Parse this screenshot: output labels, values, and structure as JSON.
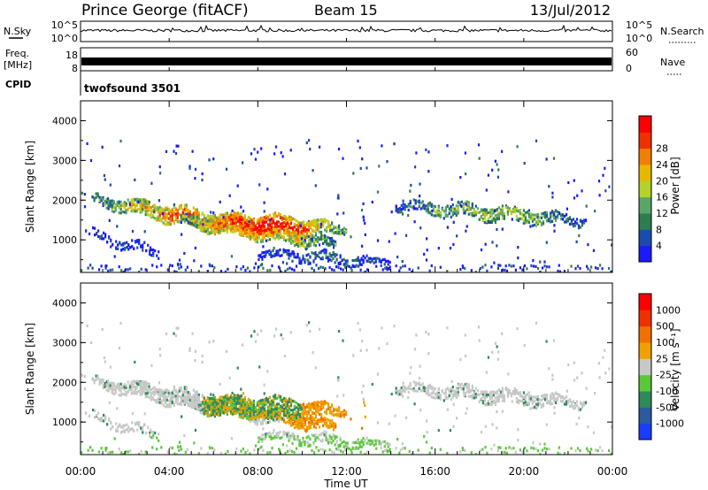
{
  "header": {
    "station": "Prince George (fitACF)",
    "beam": "Beam 15",
    "date": "13/Jul/2012"
  },
  "nsky_panel": {
    "left_label": "N.Sky",
    "right_label": "N.Search",
    "tick_top": "10^5",
    "tick_bottom": "10^0",
    "right_tick_top": "10^5",
    "right_tick_bottom": "10^0"
  },
  "freq_panel": {
    "left_label_line1": "Freq.",
    "left_label_line2": "[MHz]",
    "right_label": "Nave",
    "tick_top": "18",
    "tick_bottom": "8",
    "right_tick_top": "60",
    "right_tick_bottom": "0"
  },
  "cpid_panel": {
    "left_label": "CPID",
    "program": "twofsound 3501"
  },
  "axes": {
    "ylabel": "Slant Range [km]",
    "xlabel": "Time UT",
    "x_ticks": [
      "00:00",
      "04:00",
      "08:00",
      "12:00",
      "16:00",
      "20:00",
      "00:00"
    ],
    "y_ticks": [
      "1000",
      "2000",
      "3000",
      "4000"
    ]
  },
  "chart_data": [
    {
      "type": "heatmap",
      "panel": "power",
      "colorbar_label": "Power [dB]",
      "colorbar_ticks": [
        "4",
        "8",
        "12",
        "16",
        "20",
        "24",
        "28"
      ],
      "colors": [
        "#1a1aff",
        "#1c4bb0",
        "#2e7d4f",
        "#5aa66a",
        "#b4d22a",
        "#e8b800",
        "#f08000",
        "#f03000",
        "#ff0000"
      ],
      "xlim_hours": [
        0,
        24
      ],
      "ylim_km": [
        180,
        4500
      ],
      "echo_bands": [
        {
          "t_start": 0.5,
          "t_end": 11.5,
          "range_center_start": 2050,
          "range_center_end": 900,
          "level": 0.8
        },
        {
          "t_start": 4.5,
          "t_end": 12.0,
          "range_center_start": 1500,
          "range_center_end": 1300,
          "level": 0.9
        },
        {
          "t_start": 14.2,
          "t_end": 22.8,
          "range_center_start": 1900,
          "range_center_end": 1500,
          "level": 0.45
        },
        {
          "t_start": 8.0,
          "t_end": 14.0,
          "range_center_start": 700,
          "range_center_end": 450,
          "level": 0.2
        },
        {
          "t_start": 0.2,
          "t_end": 3.5,
          "range_center_start": 1200,
          "range_center_end": 700,
          "level": 0.15
        }
      ]
    },
    {
      "type": "heatmap",
      "panel": "velocity",
      "colorbar_label": "Velocity [m s⁻¹]",
      "colorbar_ticks": [
        "1000",
        "500",
        "100",
        "25",
        "-25",
        "-100",
        "-500",
        "-1000"
      ],
      "colors": [
        "#1a3cff",
        "#2a5aa0",
        "#2f8a5a",
        "#5ac83a",
        "#c8c8c8",
        "#f0a000",
        "#f07000",
        "#f03000",
        "#ff0000"
      ],
      "xlim_hours": [
        0,
        24
      ],
      "ylim_km": [
        180,
        4500
      ]
    }
  ]
}
